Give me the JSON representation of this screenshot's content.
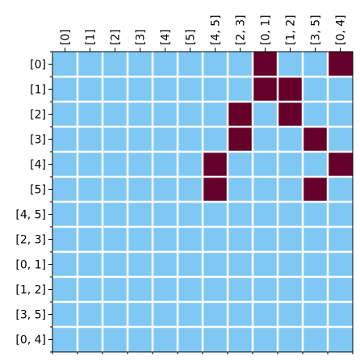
{
  "chart_data": {
    "type": "heatmap",
    "title": "",
    "xlabel": "",
    "ylabel": "",
    "x_categories": [
      "[0]",
      "[1]",
      "[2]",
      "[3]",
      "[4]",
      "[5]",
      "[4, 5]",
      "[2, 3]",
      "[0, 1]",
      "[1, 2]",
      "[3, 5]",
      "[0, 4]"
    ],
    "y_categories": [
      "[0]",
      "[1]",
      "[2]",
      "[3]",
      "[4]",
      "[5]",
      "[4, 5]",
      "[2, 3]",
      "[0, 1]",
      "[1, 2]",
      "[3, 5]",
      "[0, 4]"
    ],
    "x_tick_position": "top",
    "grid": true,
    "legend": "none",
    "colors": {
      "0": "#80c8f4",
      "1": "#66002a",
      "grid": "#ffffff"
    },
    "matrix": [
      [
        0,
        0,
        0,
        0,
        0,
        0,
        0,
        0,
        1,
        0,
        0,
        1
      ],
      [
        0,
        0,
        0,
        0,
        0,
        0,
        0,
        0,
        1,
        1,
        0,
        0
      ],
      [
        0,
        0,
        0,
        0,
        0,
        0,
        0,
        1,
        0,
        1,
        0,
        0
      ],
      [
        0,
        0,
        0,
        0,
        0,
        0,
        0,
        1,
        0,
        0,
        1,
        0
      ],
      [
        0,
        0,
        0,
        0,
        0,
        0,
        1,
        0,
        0,
        0,
        0,
        1
      ],
      [
        0,
        0,
        0,
        0,
        0,
        0,
        1,
        0,
        0,
        0,
        1,
        0
      ],
      [
        0,
        0,
        0,
        0,
        0,
        0,
        0,
        0,
        0,
        0,
        0,
        0
      ],
      [
        0,
        0,
        0,
        0,
        0,
        0,
        0,
        0,
        0,
        0,
        0,
        0
      ],
      [
        0,
        0,
        0,
        0,
        0,
        0,
        0,
        0,
        0,
        0,
        0,
        0
      ],
      [
        0,
        0,
        0,
        0,
        0,
        0,
        0,
        0,
        0,
        0,
        0,
        0
      ],
      [
        0,
        0,
        0,
        0,
        0,
        0,
        0,
        0,
        0,
        0,
        0,
        0
      ],
      [
        0,
        0,
        0,
        0,
        0,
        0,
        0,
        0,
        0,
        0,
        0,
        0
      ]
    ]
  }
}
